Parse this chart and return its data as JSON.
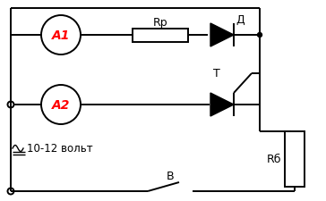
{
  "bg_color": "#ffffff",
  "line_color": "#000000",
  "red_color": "#ff0000",
  "label_A1": "A1",
  "label_A2": "A2",
  "label_Rp": "Rp",
  "label_D": "Д",
  "label_T": "T",
  "label_Rb": "Rб",
  "label_V": "В",
  "label_voltage": "10-12 вольт"
}
